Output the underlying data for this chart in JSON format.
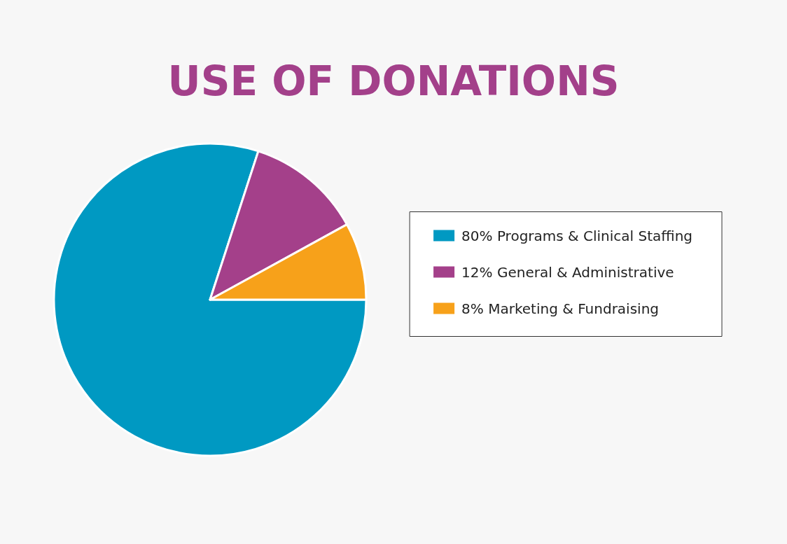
{
  "chart_data": {
    "type": "pie",
    "title": "USE OF DONATIONS",
    "categories": [
      "80% Programs & Clinical Staffing",
      "12% General & Administrative",
      "8% Marketing & Fundraising"
    ],
    "values": [
      80,
      12,
      8
    ],
    "colors": [
      "#0099c2",
      "#a4408a",
      "#f7a11a"
    ],
    "legend": "right"
  }
}
